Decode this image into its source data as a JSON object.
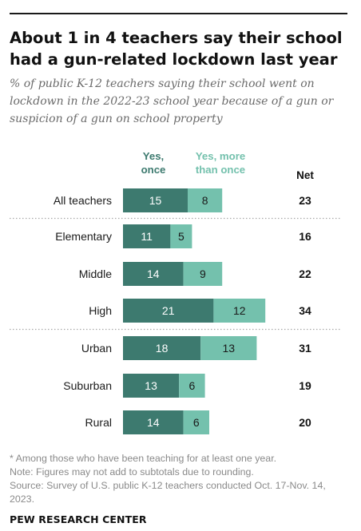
{
  "title": "About 1 in 4 teachers say their school had a gun-related lockdown last year",
  "subtitle": "% of public K-12 teachers saying their school went on lockdown in the 2022-23 school year because of a gun or suspicion of a gun on school property",
  "notes": {
    "footnote": "* Among those who have been teaching for at least one year.",
    "rounding": "Note: Figures may not add to subtotals due to rounding.",
    "source": "Source: Survey of U.S. public K-12 teachers conducted Oct. 17-Nov. 14, 2023."
  },
  "brand": "PEW RESEARCH CENTER",
  "colors": {
    "once": "#3d7a6f",
    "more_than_once": "#74c1ad",
    "separator": "#a8a8a8"
  },
  "chart_data": {
    "type": "bar",
    "orientation": "horizontal",
    "stacked": true,
    "categories": [
      "All teachers",
      "Elementary",
      "Middle",
      "High",
      "Urban",
      "Suburban",
      "Rural"
    ],
    "series": [
      {
        "name": "Yes, once",
        "values": [
          15,
          11,
          14,
          21,
          18,
          13,
          14
        ]
      },
      {
        "name": "Yes, more than once",
        "values": [
          8,
          5,
          9,
          12,
          13,
          6,
          6
        ]
      }
    ],
    "net_label": "Net",
    "net": [
      23,
      16,
      22,
      34,
      31,
      19,
      20
    ],
    "groups": [
      [
        "All teachers"
      ],
      [
        "Elementary",
        "Middle",
        "High"
      ],
      [
        "Urban",
        "Suburban",
        "Rural"
      ]
    ],
    "legend_position": "top",
    "grid": false
  }
}
